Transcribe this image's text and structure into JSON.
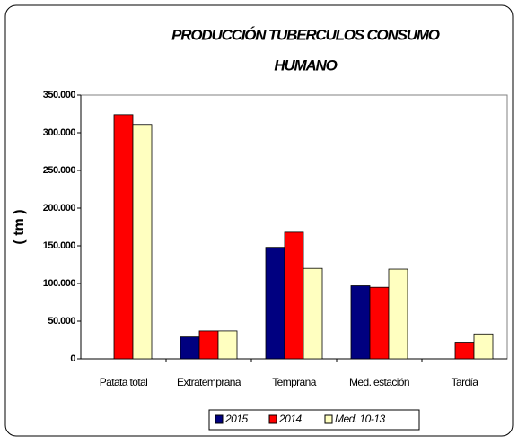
{
  "chart_data": {
    "type": "bar",
    "title": [
      "PRODUCCIÓN TUBERCULOS CONSUMO",
      "HUMANO"
    ],
    "y_label": "( tm )",
    "categories": [
      "Patata total",
      "Extratemprana",
      "Temprana",
      "Med. estación",
      "Tardía"
    ],
    "series": [
      {
        "name": "2015",
        "color": "#000080",
        "values": [
          null,
          29000,
          148000,
          97000,
          null
        ]
      },
      {
        "name": "2014",
        "color": "#ff0000",
        "values": [
          324000,
          37000,
          168000,
          95000,
          22000
        ]
      },
      {
        "name": "Med. 10-13",
        "color": "#ffffc0",
        "values": [
          311000,
          37000,
          120000,
          119000,
          33000
        ]
      }
    ],
    "ylim": [
      0,
      350000
    ],
    "yticks": [
      0,
      {
        "value": 50000,
        "label": "50.000"
      },
      {
        "value": 100000,
        "label": "100.000"
      },
      {
        "value": 150000,
        "label": "150.000"
      },
      {
        "value": 200000,
        "label": "200.000"
      },
      {
        "value": 250000,
        "label": "250.000"
      },
      {
        "value": 300000,
        "label": "300.000"
      },
      {
        "value": 350000,
        "label": "350.000"
      }
    ],
    "grid": false
  }
}
